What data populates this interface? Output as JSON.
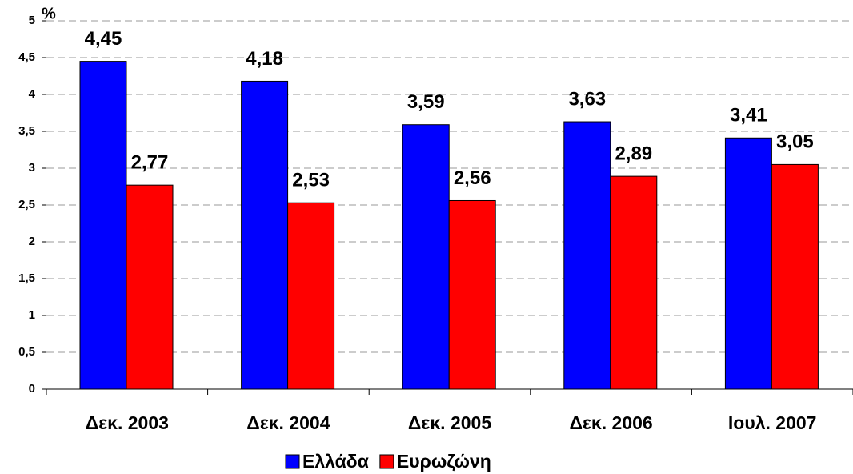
{
  "chart_data": {
    "type": "bar",
    "y_label": "%",
    "categories": [
      "Δεκ. 2003",
      "Δεκ. 2004",
      "Δεκ. 2005",
      "Δεκ. 2006",
      "Ιουλ. 2007"
    ],
    "series": [
      {
        "name": "Ελλάδα",
        "color": "#0000ff",
        "values": [
          4.45,
          4.18,
          3.59,
          3.63,
          3.41
        ],
        "value_labels": [
          "4,45",
          "4,18",
          "3,59",
          "3,63",
          "3,41"
        ]
      },
      {
        "name": "Ευρωζώνη",
        "color": "#ff0000",
        "values": [
          2.77,
          2.53,
          2.56,
          2.89,
          3.05
        ],
        "value_labels": [
          "2,77",
          "2,53",
          "2,56",
          "2,89",
          "3,05"
        ]
      }
    ],
    "ylim": [
      0,
      5
    ],
    "yticks": [
      0,
      {
        "value": 0.5,
        "label": "0,5"
      },
      1,
      {
        "value": 1.5,
        "label": "1,5"
      },
      2,
      {
        "value": 2.5,
        "label": "2,5"
      },
      3,
      {
        "value": 3.5,
        "label": "3,5"
      },
      4,
      {
        "value": 4.5,
        "label": "4,5"
      },
      5
    ],
    "grid": true,
    "legend": "bottom"
  }
}
